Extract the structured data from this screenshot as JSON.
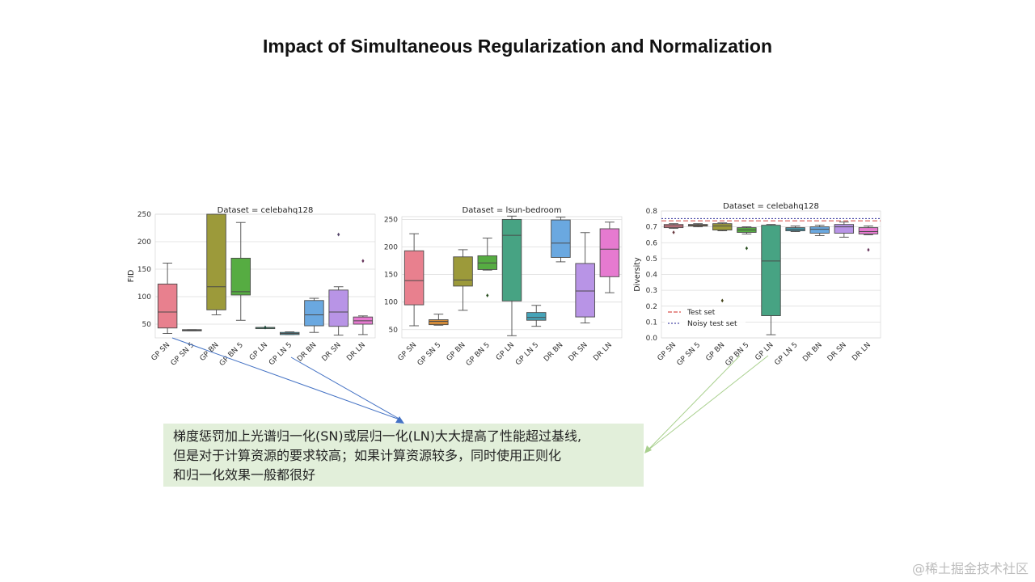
{
  "slide": {
    "title": "Impact of Simultaneous Regularization and Normalization"
  },
  "chart_data": [
    {
      "type": "box",
      "title": "Dataset = celebahq128",
      "ylabel": "FID",
      "ylim": [
        25,
        250
      ],
      "yticks": [
        50,
        100,
        150,
        200,
        250
      ],
      "categories": [
        "GP SN",
        "GP SN 5",
        "GP BN",
        "GP BN 5",
        "GP LN",
        "GP LN 5",
        "DR BN",
        "DR SN",
        "DR LN"
      ],
      "colors": [
        "#e8808e",
        "#d08a3a",
        "#9c9a3a",
        "#56ac42",
        "#47a383",
        "#45a4b9",
        "#6aa8e0",
        "#b894e6",
        "#e67ad0"
      ],
      "boxes": [
        {
          "q1": 43,
          "median": 72,
          "q3": 123,
          "wlow": 33,
          "whigh": 161,
          "outliers": []
        },
        {
          "q1": 38,
          "median": 39,
          "q3": 40,
          "wlow": 38,
          "whigh": 40,
          "outliers": []
        },
        {
          "q1": 76,
          "median": 118,
          "q3": 250,
          "wlow": 67,
          "whigh": 250,
          "outliers": []
        },
        {
          "q1": 103,
          "median": 109,
          "q3": 170,
          "wlow": 57,
          "whigh": 235,
          "outliers": []
        },
        {
          "q1": 44,
          "median": 44,
          "q3": 44,
          "wlow": 44,
          "whigh": 44,
          "outliers": [
            44
          ]
        },
        {
          "q1": 31,
          "median": 33,
          "q3": 35,
          "wlow": 31,
          "whigh": 36,
          "outliers": []
        },
        {
          "q1": 47,
          "median": 67,
          "q3": 93,
          "wlow": 35,
          "whigh": 97,
          "outliers": []
        },
        {
          "q1": 46,
          "median": 72,
          "q3": 112,
          "wlow": 30,
          "whigh": 118,
          "outliers": [
            213
          ]
        },
        {
          "q1": 50,
          "median": 56,
          "q3": 63,
          "wlow": 31,
          "whigh": 65,
          "outliers": [
            165
          ]
        }
      ]
    },
    {
      "type": "box",
      "title": "Dataset = lsun-bedroom",
      "ylabel": "",
      "ylim": [
        35,
        255
      ],
      "yticks": [
        50,
        100,
        150,
        200,
        250
      ],
      "categories": [
        "GP SN",
        "GP SN 5",
        "GP BN",
        "GP BN 5",
        "GP LN",
        "GP LN 5",
        "DR BN",
        "DR SN",
        "DR LN"
      ],
      "colors": [
        "#e8808e",
        "#d08a3a",
        "#9c9a3a",
        "#56ac42",
        "#47a383",
        "#45a4b9",
        "#6aa8e0",
        "#b894e6",
        "#e67ad0"
      ],
      "boxes": [
        {
          "q1": 95,
          "median": 139,
          "q3": 193,
          "wlow": 57,
          "whigh": 224,
          "outliers": []
        },
        {
          "q1": 59,
          "median": 65,
          "q3": 68,
          "wlow": 58,
          "whigh": 78,
          "outliers": []
        },
        {
          "q1": 129,
          "median": 140,
          "q3": 182,
          "wlow": 85,
          "whigh": 195,
          "outliers": []
        },
        {
          "q1": 159,
          "median": 171,
          "q3": 184,
          "wlow": 158,
          "whigh": 216,
          "outliers": [
            112
          ]
        },
        {
          "q1": 102,
          "median": 221,
          "q3": 250,
          "wlow": 39,
          "whigh": 256,
          "outliers": []
        },
        {
          "q1": 67,
          "median": 72,
          "q3": 81,
          "wlow": 56,
          "whigh": 94,
          "outliers": []
        },
        {
          "q1": 181,
          "median": 207,
          "q3": 249,
          "wlow": 173,
          "whigh": 254,
          "outliers": []
        },
        {
          "q1": 73,
          "median": 120,
          "q3": 170,
          "wlow": 62,
          "whigh": 226,
          "outliers": []
        },
        {
          "q1": 146,
          "median": 196,
          "q3": 233,
          "wlow": 117,
          "whigh": 245,
          "outliers": []
        }
      ]
    },
    {
      "type": "box",
      "title": "Dataset = celebahq128",
      "ylabel": "Diversity",
      "ylim": [
        0,
        0.8
      ],
      "yticks": [
        0.0,
        0.1,
        0.2,
        0.3,
        0.4,
        0.5,
        0.6,
        0.7,
        0.8
      ],
      "categories": [
        "GP SN",
        "GP SN 5",
        "GP BN",
        "GP BN 5",
        "GP LN",
        "GP LN 5",
        "DR BN",
        "DR SN",
        "DR LN"
      ],
      "colors": [
        "#e8808e",
        "#d08a3a",
        "#9c9a3a",
        "#56ac42",
        "#47a383",
        "#45a4b9",
        "#6aa8e0",
        "#b894e6",
        "#e67ad0"
      ],
      "boxes": [
        {
          "q1": 0.695,
          "median": 0.705,
          "q3": 0.715,
          "wlow": 0.69,
          "whigh": 0.72,
          "outliers": [
            0.665
          ]
        },
        {
          "q1": 0.705,
          "median": 0.71,
          "q3": 0.715,
          "wlow": 0.7,
          "whigh": 0.72,
          "outliers": []
        },
        {
          "q1": 0.68,
          "median": 0.705,
          "q3": 0.72,
          "wlow": 0.675,
          "whigh": 0.725,
          "outliers": [
            0.235
          ]
        },
        {
          "q1": 0.665,
          "median": 0.68,
          "q3": 0.695,
          "wlow": 0.655,
          "whigh": 0.7,
          "outliers": [
            0.565
          ]
        },
        {
          "q1": 0.14,
          "median": 0.485,
          "q3": 0.71,
          "wlow": 0.02,
          "whigh": 0.715,
          "outliers": []
        },
        {
          "q1": 0.675,
          "median": 0.685,
          "q3": 0.695,
          "wlow": 0.67,
          "whigh": 0.705,
          "outliers": []
        },
        {
          "q1": 0.66,
          "median": 0.685,
          "q3": 0.7,
          "wlow": 0.645,
          "whigh": 0.71,
          "outliers": []
        },
        {
          "q1": 0.66,
          "median": 0.7,
          "q3": 0.715,
          "wlow": 0.635,
          "whigh": 0.73,
          "outliers": []
        },
        {
          "q1": 0.655,
          "median": 0.67,
          "q3": 0.695,
          "wlow": 0.65,
          "whigh": 0.705,
          "outliers": [
            0.555
          ]
        }
      ],
      "reference_lines": [
        {
          "name": "Test set",
          "value": 0.738,
          "color": "#d9534f",
          "style": "dashed"
        },
        {
          "name": "Noisy test set",
          "value": 0.752,
          "color": "#4a4aa8",
          "style": "dotted"
        }
      ],
      "legend_position": "lower-left"
    }
  ],
  "annotation": {
    "lines": [
      "梯度惩罚加上光谱归一化(SN)或层归一化(LN)大大提高了性能超过基线,",
      "但是对于计算资源的要求较高；如果计算资源较多，同时使用正则化",
      "和归一化效果一般都很好"
    ]
  },
  "watermark": "@稀土掘金技术社区",
  "colors": {
    "arrow_blue": "#4472c4",
    "arrow_green": "#a9d08e",
    "note_bg": "#e2efda"
  }
}
